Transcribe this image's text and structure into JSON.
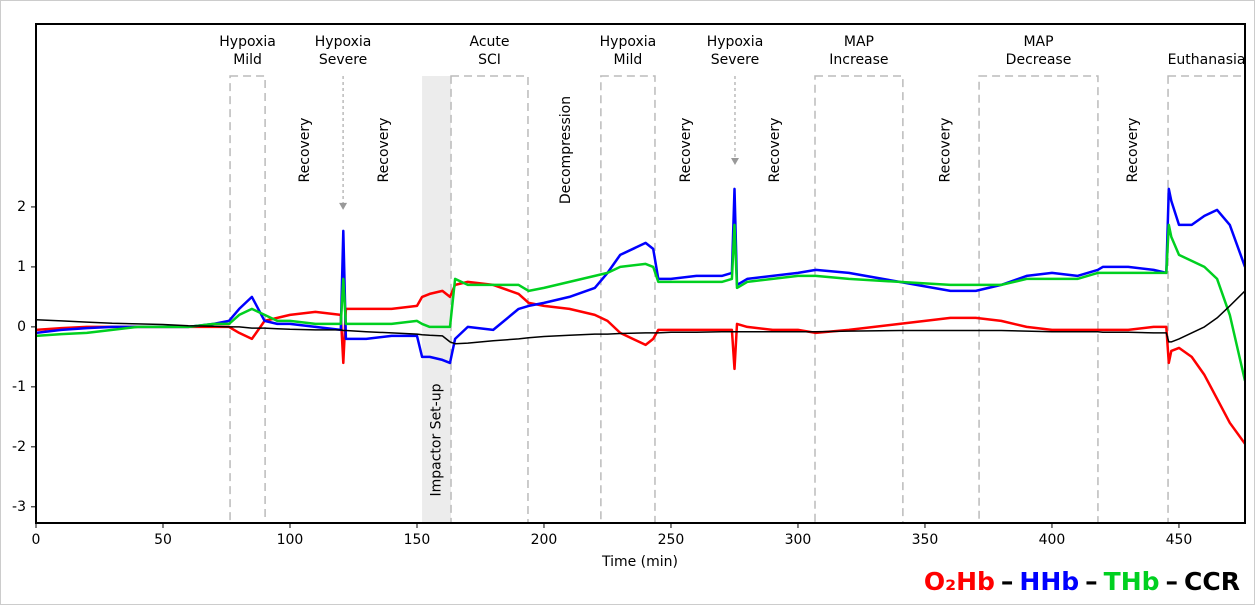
{
  "chart_data": {
    "type": "line",
    "x_label": "Time (min)",
    "xlim": [
      0,
      476
    ],
    "ylim": [
      -3.27,
      5.05
    ],
    "xticks": [
      0,
      50,
      100,
      150,
      200,
      250,
      300,
      350,
      400,
      450
    ],
    "yticks": [
      -3,
      -2,
      -1,
      0,
      1,
      2
    ],
    "x": [
      0,
      10,
      20,
      30,
      40,
      50,
      60,
      70,
      76,
      80,
      85,
      90,
      95,
      100,
      110,
      120,
      121,
      122,
      130,
      140,
      150,
      152,
      155,
      160,
      163,
      165,
      170,
      180,
      190,
      194,
      200,
      210,
      220,
      225,
      230,
      240,
      243,
      245,
      250,
      260,
      270,
      274,
      275,
      276,
      280,
      290,
      300,
      307,
      320,
      340,
      360,
      370,
      380,
      390,
      400,
      410,
      418,
      420,
      430,
      440,
      445,
      446,
      447,
      450,
      455,
      460,
      465,
      470,
      476
    ],
    "series": [
      {
        "name": "O₂Hb",
        "color": "#ff0000",
        "values": [
          -0.05,
          -0.02,
          0,
          0,
          0,
          0,
          0,
          0,
          0,
          -0.1,
          -0.2,
          0.1,
          0.15,
          0.2,
          0.25,
          0.2,
          -0.6,
          0.3,
          0.3,
          0.3,
          0.35,
          0.5,
          0.55,
          0.6,
          0.5,
          0.7,
          0.75,
          0.7,
          0.55,
          0.4,
          0.35,
          0.3,
          0.2,
          0.1,
          -0.1,
          -0.3,
          -0.2,
          -0.05,
          -0.05,
          -0.05,
          -0.05,
          -0.05,
          -0.7,
          0.05,
          0,
          -0.05,
          -0.05,
          -0.1,
          -0.05,
          0.05,
          0.15,
          0.15,
          0.1,
          0,
          -0.05,
          -0.05,
          -0.05,
          -0.05,
          -0.05,
          0,
          0,
          -0.6,
          -0.4,
          -0.35,
          -0.5,
          -0.8,
          -1.2,
          -1.6,
          -1.95
        ]
      },
      {
        "name": "HHb",
        "color": "#0000ff",
        "values": [
          -0.1,
          -0.05,
          -0.02,
          0,
          0,
          0,
          0,
          0.05,
          0.1,
          0.3,
          0.5,
          0.1,
          0.05,
          0.05,
          0,
          -0.05,
          1.6,
          -0.2,
          -0.2,
          -0.15,
          -0.15,
          -0.5,
          -0.5,
          -0.55,
          -0.6,
          -0.2,
          0,
          -0.05,
          0.3,
          0.35,
          0.4,
          0.5,
          0.65,
          0.9,
          1.2,
          1.4,
          1.3,
          0.8,
          0.8,
          0.85,
          0.85,
          0.9,
          2.3,
          0.7,
          0.8,
          0.85,
          0.9,
          0.95,
          0.9,
          0.75,
          0.6,
          0.6,
          0.7,
          0.85,
          0.9,
          0.85,
          0.95,
          1.0,
          1.0,
          0.95,
          0.9,
          2.3,
          2.1,
          1.7,
          1.7,
          1.85,
          1.95,
          1.7,
          1.0
        ]
      },
      {
        "name": "THb",
        "color": "#00d020",
        "values": [
          -0.15,
          -0.12,
          -0.1,
          -0.05,
          0,
          0,
          0,
          0.05,
          0.05,
          0.2,
          0.3,
          0.2,
          0.1,
          0.1,
          0.05,
          0.05,
          0.8,
          0.05,
          0.05,
          0.05,
          0.1,
          0.05,
          0,
          0,
          0,
          0.8,
          0.7,
          0.7,
          0.7,
          0.6,
          0.65,
          0.75,
          0.85,
          0.9,
          1.0,
          1.05,
          1.0,
          0.75,
          0.75,
          0.75,
          0.75,
          0.8,
          1.7,
          0.65,
          0.75,
          0.8,
          0.85,
          0.85,
          0.8,
          0.75,
          0.7,
          0.7,
          0.7,
          0.8,
          0.8,
          0.8,
          0.9,
          0.9,
          0.9,
          0.9,
          0.9,
          1.7,
          1.5,
          1.2,
          1.1,
          1.0,
          0.8,
          0.2,
          -0.9
        ]
      },
      {
        "name": "CCR",
        "color": "#000000",
        "values": [
          0.12,
          0.1,
          0.08,
          0.06,
          0.05,
          0.04,
          0.02,
          0.01,
          0,
          0,
          -0.02,
          -0.02,
          -0.03,
          -0.04,
          -0.05,
          -0.05,
          -0.06,
          -0.06,
          -0.08,
          -0.1,
          -0.12,
          -0.13,
          -0.14,
          -0.15,
          -0.25,
          -0.28,
          -0.27,
          -0.23,
          -0.2,
          -0.18,
          -0.16,
          -0.14,
          -0.12,
          -0.12,
          -0.11,
          -0.1,
          -0.1,
          -0.1,
          -0.09,
          -0.09,
          -0.08,
          -0.08,
          -0.08,
          -0.08,
          -0.08,
          -0.08,
          -0.08,
          -0.08,
          -0.07,
          -0.06,
          -0.06,
          -0.06,
          -0.06,
          -0.07,
          -0.08,
          -0.08,
          -0.08,
          -0.09,
          -0.09,
          -0.1,
          -0.1,
          -0.25,
          -0.25,
          -0.2,
          -0.1,
          0,
          0.15,
          0.35,
          0.6
        ]
      }
    ],
    "legend_separator": "–",
    "phases": [
      {
        "label": [
          "Hypoxia",
          "Mild"
        ],
        "start": 76.4,
        "end": 90.2
      },
      {
        "label": [
          "Hypoxia",
          "Severe"
        ],
        "arrow_at": 120.9,
        "arrow_end": 1.95
      },
      {
        "label": [
          "Acute",
          "SCI"
        ],
        "start": 163.4,
        "end": 193.7
      },
      {
        "label": [
          "Hypoxia",
          "Mild"
        ],
        "start": 222.4,
        "end": 243.7
      },
      {
        "label": [
          "Hypoxia",
          "Severe"
        ],
        "arrow_at": 275.2,
        "arrow_end": 2.7
      },
      {
        "label": [
          "MAP",
          "Increase"
        ],
        "start": 306.7,
        "end": 341.3
      },
      {
        "label": [
          "MAP",
          "Decrease"
        ],
        "start": 371.3,
        "end": 418.1
      },
      {
        "label": [
          "Euthanasia"
        ],
        "start": 445.7,
        "end": 476
      }
    ],
    "band": {
      "label": "Impactor Set-up",
      "start": 152,
      "end": 163.4
    },
    "vertical_labels": [
      {
        "text": "Recovery",
        "x": 106
      },
      {
        "text": "Recovery",
        "x": 137
      },
      {
        "text": "Decompression",
        "x": 208.7
      },
      {
        "text": "Recovery",
        "x": 256
      },
      {
        "text": "Recovery",
        "x": 291
      },
      {
        "text": "Recovery",
        "x": 358
      },
      {
        "text": "Recovery",
        "x": 432
      }
    ]
  }
}
